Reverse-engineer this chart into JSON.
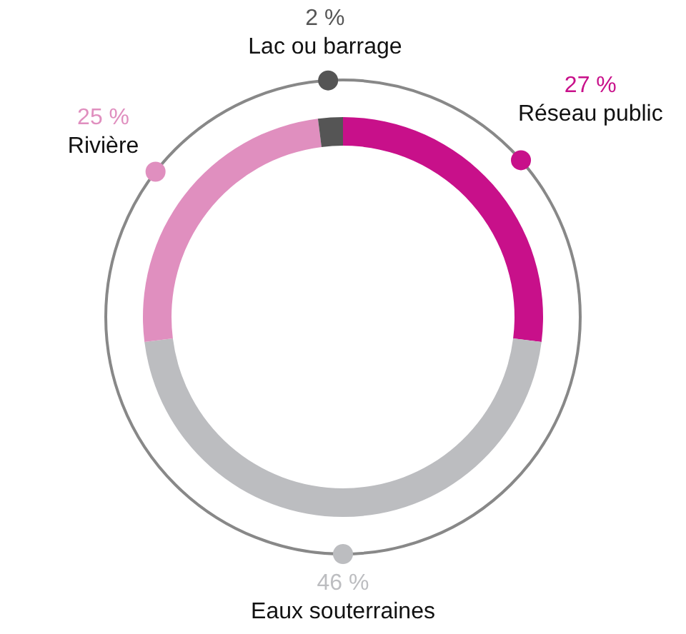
{
  "chart_data": {
    "type": "donut",
    "categories": [
      "Réseau public",
      "Eaux souterraines",
      "Rivière",
      "Lac ou barrage"
    ],
    "values": [
      27,
      46,
      25,
      2
    ],
    "colors": [
      "#c8108a",
      "#bcbdc0",
      "#e08fbf",
      "#555555"
    ],
    "value_labels": [
      "27 %",
      "46 %",
      "25 %",
      "2 %"
    ]
  }
}
